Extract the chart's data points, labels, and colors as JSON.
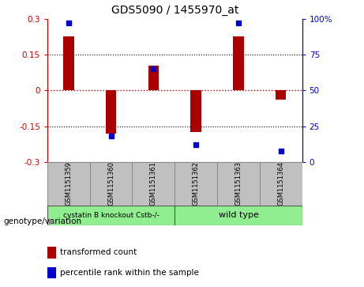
{
  "title": "GDS5090 / 1455970_at",
  "samples": [
    "GSM1151359",
    "GSM1151360",
    "GSM1151361",
    "GSM1151362",
    "GSM1151363",
    "GSM1151364"
  ],
  "transformed_counts": [
    0.225,
    -0.18,
    0.105,
    -0.175,
    0.225,
    -0.04
  ],
  "percentile_ranks": [
    97,
    18,
    65,
    12,
    97,
    8
  ],
  "ylim_left": [
    -0.3,
    0.3
  ],
  "ylim_right": [
    0,
    100
  ],
  "yticks_left": [
    -0.3,
    -0.15,
    0,
    0.15,
    0.3
  ],
  "yticks_right": [
    0,
    25,
    50,
    75,
    100
  ],
  "ytick_labels_left": [
    "-0.3",
    "-0.15",
    "0",
    "0.15",
    "0.3"
  ],
  "ytick_labels_right": [
    "0",
    "25",
    "50",
    "75",
    "100%"
  ],
  "bar_color": "#aa0000",
  "dot_color": "#0000cc",
  "zero_line_color": "#cc0000",
  "dotted_line_color": "#000000",
  "group0_label": "cystatin B knockout Cstb-/-",
  "group1_label": "wild type",
  "group_box_color": "#c0c0c0",
  "group_color": "#90ee90",
  "genotype_label": "genotype/variation",
  "legend_bar_label": "transformed count",
  "legend_dot_label": "percentile rank within the sample",
  "bar_width": 0.25
}
